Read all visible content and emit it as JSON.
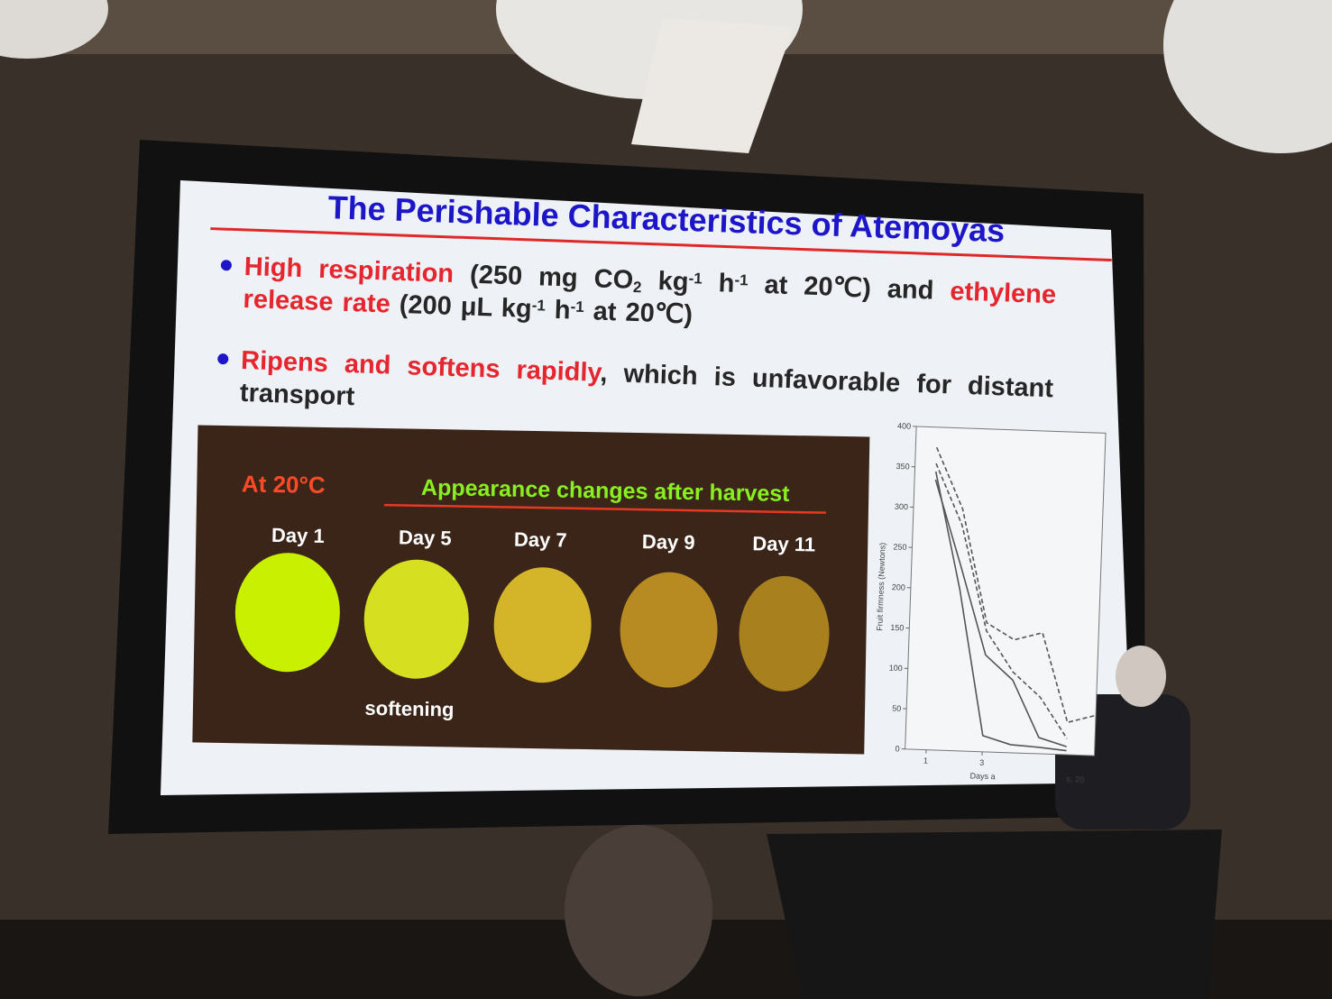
{
  "slide": {
    "title": "The Perishable Characteristics of Atemoyas",
    "bullets": [
      {
        "lines": [
          [
            {
              "text": "High respiration",
              "color": "red"
            },
            {
              "text": " (250 mg CO",
              "color": "black"
            },
            {
              "text": "2",
              "color": "black",
              "shift": "sub"
            },
            {
              "text": " kg",
              "color": "black"
            },
            {
              "text": "-1",
              "color": "black",
              "shift": "sup"
            },
            {
              "text": " h",
              "color": "black"
            },
            {
              "text": "-1",
              "color": "black",
              "shift": "sup"
            },
            {
              "text": " at 20℃) and ",
              "color": "black"
            },
            {
              "text": "ethylene",
              "color": "red"
            }
          ],
          [
            {
              "text": "release rate",
              "color": "red"
            },
            {
              "text": " (200 μL kg",
              "color": "black"
            },
            {
              "text": "-1",
              "color": "black",
              "shift": "sup"
            },
            {
              "text": " h",
              "color": "black"
            },
            {
              "text": "-1",
              "color": "black",
              "shift": "sup"
            },
            {
              "text": " at 20℃)",
              "color": "black"
            }
          ]
        ]
      },
      {
        "lines": [
          [
            {
              "text": "Ripens and softens rapidly",
              "color": "red"
            },
            {
              "text": ", which is unfavorable for distant",
              "color": "black"
            }
          ],
          [
            {
              "text": "transport",
              "color": "black"
            }
          ]
        ]
      }
    ],
    "photo_panel": {
      "condition": "At 20°C",
      "heading": "Appearance changes after harvest",
      "days": [
        "Day 1",
        "Day 5",
        "Day 7",
        "Day 9",
        "Day 11"
      ],
      "note": "softening"
    }
  },
  "chart_data": {
    "type": "line",
    "y_label": "Fruit firmness (Newtons)",
    "x_label": "Days a",
    "citation": "s, 20",
    "x": [
      1,
      2,
      3,
      4,
      5,
      6,
      7
    ],
    "series": [
      {
        "color": "#555555",
        "dash": false,
        "values": [
          345,
          200,
          20,
          10,
          8,
          5,
          null
        ]
      },
      {
        "color": "#555555",
        "dash": false,
        "values": [
          335,
          230,
          120,
          90,
          20,
          10,
          null
        ]
      },
      {
        "color": "#555555",
        "dash": true,
        "values": [
          375,
          300,
          160,
          140,
          150,
          40,
          50
        ]
      },
      {
        "color": "#555555",
        "dash": true,
        "values": [
          355,
          280,
          150,
          100,
          70,
          20,
          null
        ]
      }
    ],
    "xlim": [
      0.25,
      7
    ],
    "ylim": [
      0,
      400
    ],
    "xticks": [
      1,
      3
    ],
    "yticks": [
      0,
      50,
      100,
      150,
      200,
      250,
      300,
      350,
      400
    ]
  }
}
